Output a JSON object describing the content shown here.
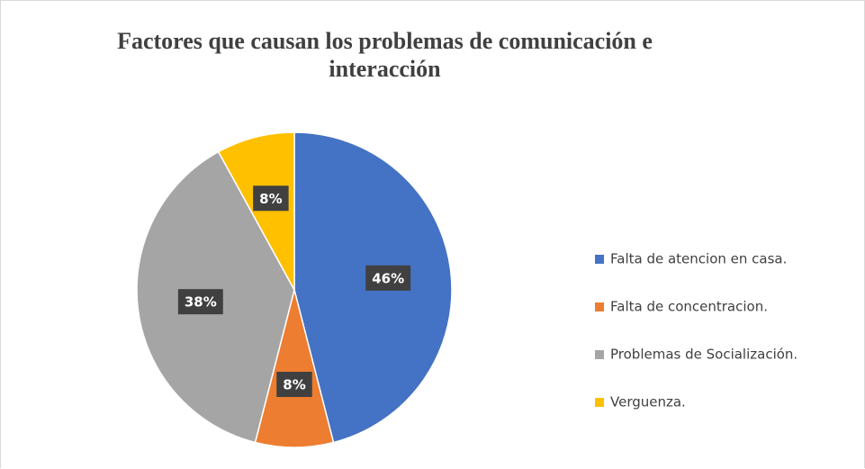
{
  "chart_data": {
    "type": "pie",
    "title": "Factores que causan los problemas de comunicación e interacción",
    "categories": [
      "Falta de atencion en casa.",
      "Falta de concentracion.",
      "Problemas de Socialización.",
      "Verguenza."
    ],
    "values": [
      46,
      8,
      38,
      8
    ],
    "value_labels": [
      "46%",
      "8%",
      "38%",
      "8%"
    ],
    "colors": [
      "#4472c4",
      "#ed7d31",
      "#a5a5a5",
      "#ffc000"
    ],
    "legend": "right"
  }
}
